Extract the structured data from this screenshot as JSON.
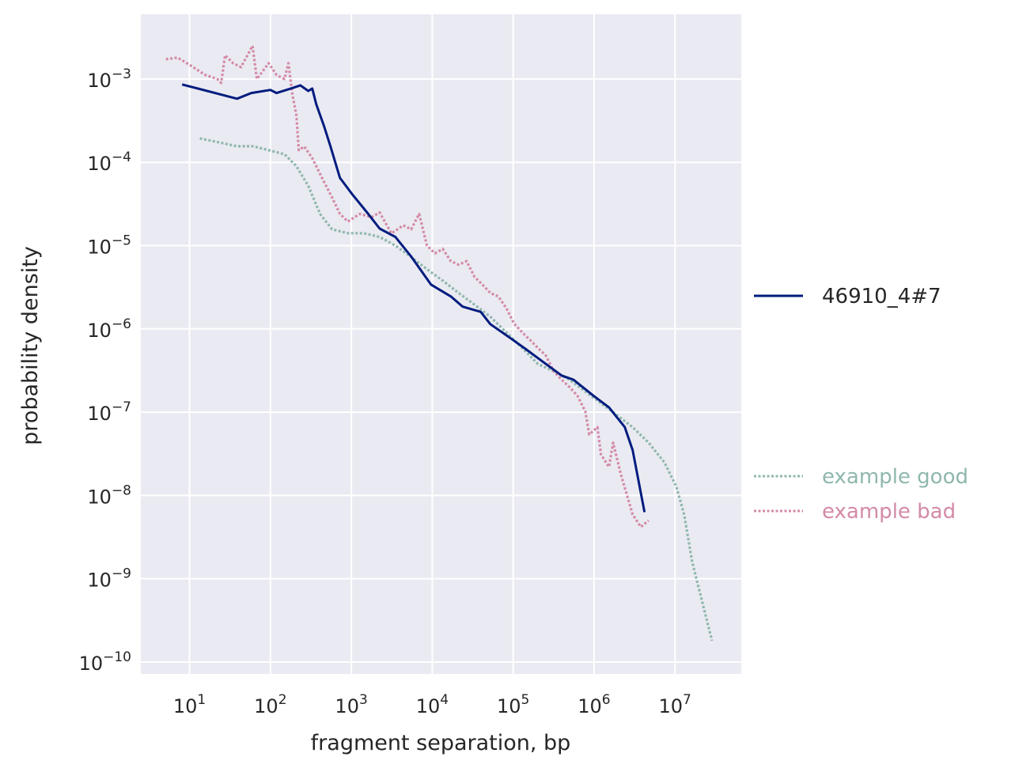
{
  "chart_data": {
    "type": "line",
    "title": "",
    "xlabel": "fragment separation, bp",
    "ylabel": "probability density",
    "xscale": "log",
    "yscale": "log",
    "xlim": [
      2.5,
      66000000
    ],
    "ylim": [
      7.2e-11,
      0.006
    ],
    "grid": true,
    "legend_placement": "right-outside",
    "xticks": [
      1,
      2,
      3,
      4,
      5,
      6,
      7
    ],
    "xtick_labels": [
      "10^1",
      "10^2",
      "10^3",
      "10^4",
      "10^5",
      "10^6",
      "10^7"
    ],
    "yticks": [
      -3,
      -4,
      -5,
      -6,
      -7,
      -8,
      -9,
      -10
    ],
    "ytick_labels": [
      "10^-3",
      "10^-4",
      "10^-5",
      "10^-6",
      "10^-7",
      "10^-8",
      "10^-9",
      "10^-10"
    ],
    "series": [
      {
        "name": "46910_4#7",
        "color": "#001c7f",
        "style": "solid",
        "x": [
          8.1,
          38.6,
          58,
          100,
          119,
          187,
          234,
          294,
          329,
          368,
          461,
          552,
          723,
          1014,
          1590,
          2240,
          3500,
          5490,
          9640,
          17000,
          23800,
          39800,
          52200,
          91800,
          144000,
          253000,
          398000,
          557000,
          980000,
          1530000,
          2400000,
          3000000,
          4200000
        ],
        "y": [
          0.00086,
          0.00058,
          0.00068,
          0.00074,
          0.00068,
          0.00078,
          0.00084,
          0.00072,
          0.00077,
          0.0005,
          0.00027,
          0.000156,
          6.5e-05,
          4.2e-05,
          2.45e-05,
          1.6e-05,
          1.27e-05,
          7.4e-06,
          3.4e-06,
          2.45e-06,
          1.85e-06,
          1.6e-06,
          1.14e-06,
          7.8e-07,
          5.7e-07,
          3.8e-07,
          2.75e-07,
          2.45e-07,
          1.58e-07,
          1.14e-07,
          6.6e-08,
          3.5e-08,
          6.3e-09
        ]
      },
      {
        "name": "example good",
        "color": "#8fb7ae",
        "style": "dotted",
        "x": [
          13.4,
          38.6,
          60.7,
          95,
          149,
          209,
          294,
          411,
          577,
          906,
          1420,
          2240,
          3500,
          5490,
          8610,
          13500,
          21200,
          33400,
          52200,
          82100,
          129000,
          202000,
          317000,
          497000,
          780000,
          1220000,
          1920000,
          3000000,
          4730000,
          7400000,
          10400000,
          13000000,
          16300000,
          22900000,
          28700000
        ],
        "y": [
          0.000194,
          0.000156,
          0.000156,
          0.00014,
          0.000125,
          9e-05,
          5.2e-05,
          2.4e-05,
          1.57e-05,
          1.41e-05,
          1.41e-05,
          1.27e-05,
          1e-05,
          7.3e-06,
          5.2e-06,
          3.8e-06,
          2.7e-06,
          1.95e-06,
          1.4e-06,
          9.1e-07,
          5.9e-07,
          3.8e-07,
          3.1e-07,
          2.45e-07,
          1.77e-07,
          1.28e-07,
          9.2e-08,
          6.6e-08,
          4.3e-08,
          2.5e-08,
          1.28e-08,
          5.9e-09,
          1.6e-09,
          4.3e-10,
          1.8e-10
        ]
      },
      {
        "name": "example bad",
        "color": "#d38aa8",
        "style": "dotted",
        "x": [
          5.1,
          7.1,
          10,
          15.7,
          22,
          24.6,
          27.5,
          34.5,
          43.2,
          60,
          68,
          95,
          119,
          149,
          167,
          187,
          209,
          224,
          262,
          329,
          461,
          577,
          723,
          906,
          1270,
          1780,
          2240,
          3130,
          4380,
          5490,
          6890,
          8610,
          10800,
          13500,
          17000,
          21200,
          26600,
          33400,
          41700,
          52200,
          65500,
          82100,
          103000,
          129000,
          161000,
          202000,
          253000,
          317000,
          398000,
          497000,
          622000,
          780000,
          871000,
          1100000,
          1220000,
          1530000,
          1720000,
          2150000,
          3000000,
          3780000,
          4730000
        ],
        "y": [
          0.00173,
          0.00181,
          0.00148,
          0.00112,
          0.001,
          0.0009,
          0.00193,
          0.00155,
          0.00139,
          0.0025,
          0.001,
          0.00155,
          0.00112,
          0.001,
          0.00155,
          0.00065,
          0.00037,
          0.00014,
          0.000155,
          0.000112,
          5.8e-05,
          3.8e-05,
          2.4e-05,
          1.95e-05,
          2.4e-05,
          2.2e-05,
          2.5e-05,
          1.4e-05,
          1.75e-05,
          1.57e-05,
          2.4e-05,
          1e-05,
          8.1e-06,
          9.1e-06,
          6.5e-06,
          5.9e-06,
          6.5e-06,
          4.2e-06,
          3.4e-06,
          2.7e-06,
          2.45e-06,
          1.78e-06,
          1.15e-06,
          9.1e-07,
          7.4e-07,
          5.9e-07,
          4.8e-07,
          3.1e-07,
          2.45e-07,
          2e-07,
          1.58e-07,
          1.02e-07,
          5.4e-08,
          6.6e-08,
          3.1e-08,
          2.2e-08,
          4.3e-08,
          1.78e-08,
          5.9e-09,
          4.2e-09,
          5e-09
        ]
      }
    ]
  },
  "colors": {
    "plot_bg": "#eaeaf2",
    "grid": "#ffffff",
    "text": "#262626"
  }
}
